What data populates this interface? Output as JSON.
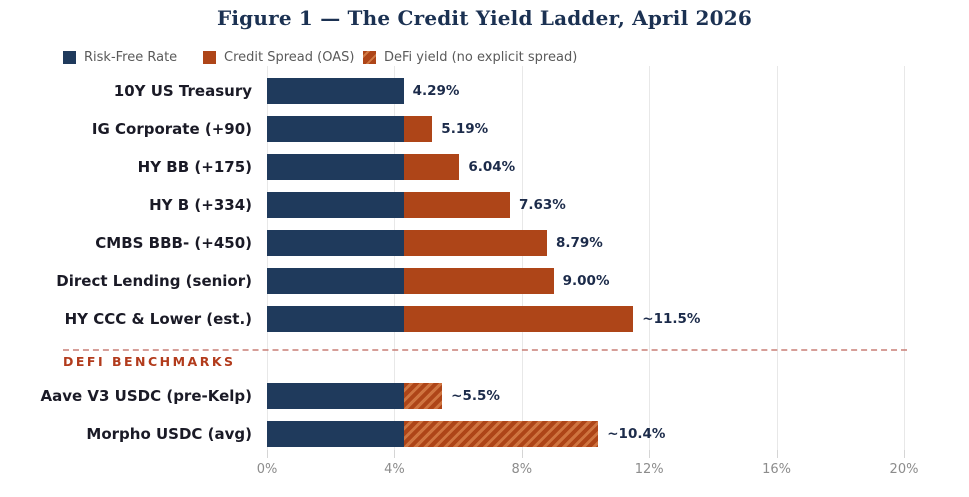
{
  "title": "Figure 1 — The Credit Yield Ladder, April 2026",
  "legend": [
    {
      "label": "Risk-Free Rate",
      "swatch": "navy-square-icon",
      "color": "#1f3a5c"
    },
    {
      "label": "Credit Spread (OAS)",
      "swatch": "rust-square-icon",
      "color": "#ae4518"
    },
    {
      "label": "DeFi yield (no explicit spread)",
      "swatch": "hatched-rust-square-icon",
      "color": "#ae4518"
    }
  ],
  "section_divider": {
    "label": "DEFI BENCHMARKS",
    "color": "#b23b1c"
  },
  "colors": {
    "risk_free": "#1f3a5c",
    "credit_spread": "#ae4518",
    "defi_hatch_light": "#cf7440",
    "title_text": "#1b3152",
    "category_text": "#1a1a26",
    "value_text": "#1c2b4a",
    "tick_text": "#8c8c8c",
    "gridline": "#e8e8e8",
    "divider": "#c87d76"
  },
  "chart_data": {
    "type": "bar",
    "orientation": "horizontal",
    "stacked": true,
    "title": "Figure 1 — The Credit Yield Ladder, April 2026",
    "categories": [
      "10Y US Treasury",
      "IG Corporate (+90)",
      "HY BB (+175)",
      "HY B (+334)",
      "CMBS BBB- (+450)",
      "Direct Lending (senior)",
      "HY CCC & Lower (est.)",
      "Aave V3 USDC (pre-Kelp)",
      "Morpho USDC (avg)"
    ],
    "series": [
      {
        "name": "Risk-Free Rate",
        "values": [
          4.29,
          4.29,
          4.29,
          4.29,
          4.29,
          4.29,
          4.29,
          4.29,
          4.29
        ]
      },
      {
        "name": "Credit Spread (OAS)",
        "values": [
          0,
          0.9,
          1.75,
          3.34,
          4.5,
          4.71,
          7.21,
          0,
          0
        ]
      },
      {
        "name": "DeFi yield (no explicit spread)",
        "values": [
          0,
          0,
          0,
          0,
          0,
          0,
          0,
          1.21,
          6.11
        ]
      }
    ],
    "totals": [
      4.29,
      5.19,
      6.04,
      7.63,
      8.79,
      9.0,
      11.5,
      5.5,
      10.4
    ],
    "value_labels": [
      "4.29%",
      "5.19%",
      "6.04%",
      "7.63%",
      "8.79%",
      "9.00%",
      "~11.5%",
      "~5.5%",
      "~10.4%"
    ],
    "x_ticks": [
      "0%",
      "4%",
      "8%",
      "12%",
      "16%",
      "20%"
    ],
    "x_tick_values": [
      0,
      4,
      8,
      12,
      16,
      20
    ],
    "xlim": [
      0,
      20
    ],
    "grid": true,
    "legend_position": "top-left",
    "defi_section_start_index": 7
  }
}
